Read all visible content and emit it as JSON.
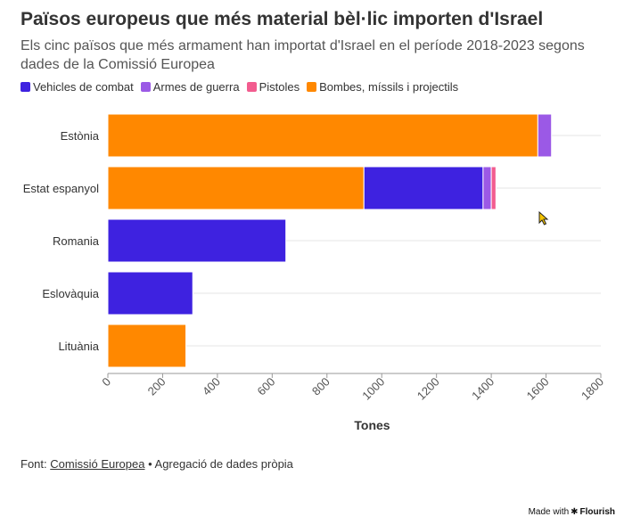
{
  "title": "Països europeus que més material bèl·lic importen d'Israel",
  "subtitle": "Els cinc països que més armament han importat d'Israel en el període 2018-2023 segons dades de la Comissió Europea",
  "source": {
    "prefix": "Font: ",
    "link": "Comissió Europea",
    "suffix": " • Agregació de dades pròpia"
  },
  "footer": {
    "made_with": "Made with",
    "brand": "Flourish"
  },
  "chart_data": {
    "type": "bar",
    "orientation": "horizontal",
    "stacked": true,
    "categories": [
      "Estònia",
      "Estat espanyol",
      "Romania",
      "Eslovàquia",
      "Lituània"
    ],
    "series": [
      {
        "name": "Bombes, míssils i projectils",
        "color": "#ff8800",
        "values": [
          1570,
          935,
          0,
          0,
          285
        ]
      },
      {
        "name": "Vehicles de combat",
        "color": "#3e22e0",
        "values": [
          0,
          435,
          650,
          310,
          0
        ]
      },
      {
        "name": "Armes de guerra",
        "color": "#9b59e6",
        "values": [
          50,
          30,
          0,
          0,
          0
        ]
      },
      {
        "name": "Pistoles",
        "color": "#f25c8f",
        "values": [
          0,
          17,
          0,
          0,
          0
        ]
      }
    ],
    "legend_order": [
      "Vehicles de combat",
      "Armes de guerra",
      "Pistoles",
      "Bombes, míssils i projectils"
    ],
    "xlabel": "Tones",
    "xlim": [
      0,
      1800
    ],
    "xticks": [
      "0",
      "200",
      "400",
      "600",
      "800",
      "1000",
      "1200",
      "1400",
      "1600",
      "1800"
    ],
    "grid": true,
    "legend_position": "top-left"
  }
}
